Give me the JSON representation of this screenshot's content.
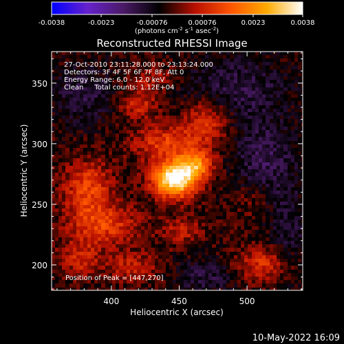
{
  "chart_data": {
    "type": "heatmap",
    "title": "Reconstructed RHESSI Image",
    "xlabel": "Heliocentric X (arcsec)",
    "ylabel": "Heliocentric Y (arcsec)",
    "xlim": [
      356,
      541
    ],
    "ylim": [
      179,
      376
    ],
    "x_ticks": [
      400,
      450,
      500
    ],
    "y_ticks": [
      200,
      250,
      300,
      350
    ],
    "colorbar": {
      "label_parts": [
        "(photons cm",
        "-2",
        " s",
        "-1",
        " asec",
        "-2",
        ")"
      ],
      "range": [
        -0.0038,
        0.0038
      ],
      "ticks": [
        "-0.0038",
        "-0.0023",
        "-0.00076",
        "0.00076",
        "0.0023",
        "0.0038"
      ],
      "colors": [
        "#0000ff",
        "#6622cc",
        "#4a1a66",
        "#000000",
        "#b81000",
        "#ff5500",
        "#ffaa00",
        "#ffffff"
      ]
    },
    "annotations": [
      "27-Oct-2010 23:11:28.000 to 23:13:24.000",
      "Detectors: 3F 4F 5F 6F 7F 8F, Att 0",
      "Energy Range: 6.0 - 12.0 keV",
      "Clean     Total counts: 1.12E+04"
    ],
    "peak_label": "Position of Peak = [447,270]",
    "peak": [
      447,
      270
    ],
    "sources": [
      {
        "x": 447,
        "y": 270,
        "sx": 11,
        "sy": 10,
        "amp": 0.0042
      },
      {
        "x": 462,
        "y": 282,
        "sx": 9,
        "sy": 8,
        "amp": 0.0024
      },
      {
        "x": 440,
        "y": 300,
        "sx": 16,
        "sy": 10,
        "amp": 0.0015
      },
      {
        "x": 470,
        "y": 318,
        "sx": 12,
        "sy": 14,
        "amp": 0.0014
      },
      {
        "x": 420,
        "y": 332,
        "sx": 10,
        "sy": 8,
        "amp": 0.0012
      },
      {
        "x": 383,
        "y": 262,
        "sx": 12,
        "sy": 16,
        "amp": 0.0016
      },
      {
        "x": 395,
        "y": 232,
        "sx": 18,
        "sy": 12,
        "amp": 0.0014
      },
      {
        "x": 377,
        "y": 205,
        "sx": 10,
        "sy": 10,
        "amp": 0.0011
      },
      {
        "x": 415,
        "y": 198,
        "sx": 14,
        "sy": 8,
        "amp": 0.001
      },
      {
        "x": 452,
        "y": 228,
        "sx": 10,
        "sy": 8,
        "amp": 0.0009
      },
      {
        "x": 512,
        "y": 200,
        "sx": 14,
        "sy": 10,
        "amp": 0.0013
      },
      {
        "x": 432,
        "y": 354,
        "sx": 12,
        "sy": 8,
        "amp": 0.0008
      },
      {
        "x": 505,
        "y": 252,
        "sx": 10,
        "sy": 10,
        "amp": 0.0004
      },
      {
        "x": 512,
        "y": 290,
        "sx": 16,
        "sy": 22,
        "amp": -0.001
      },
      {
        "x": 490,
        "y": 346,
        "sx": 28,
        "sy": 18,
        "amp": -0.0009
      },
      {
        "x": 380,
        "y": 340,
        "sx": 16,
        "sy": 18,
        "amp": -0.0008
      },
      {
        "x": 470,
        "y": 190,
        "sx": 16,
        "sy": 10,
        "amp": -0.0008
      },
      {
        "x": 530,
        "y": 230,
        "sx": 10,
        "sy": 30,
        "amp": -0.0007
      }
    ]
  },
  "footer": {
    "timestamp": "10-May-2022 16:09"
  }
}
